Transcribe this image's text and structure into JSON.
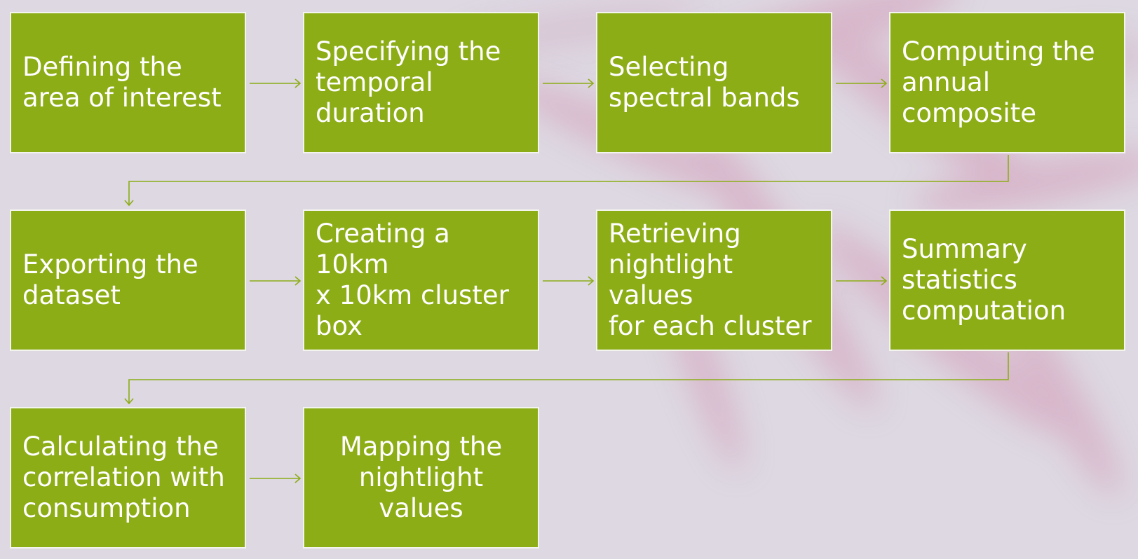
{
  "colors": {
    "background": "#ddd8e2",
    "box_fill": "#8cad16",
    "box_border": "#f3f4ee",
    "box_text": "#ffffff",
    "connector": "#8cad16",
    "decoration": "#d49bb8"
  },
  "steps": [
    {
      "label": " Defining the\narea of interest"
    },
    {
      "label": "Specifying the\ntemporal\nduration"
    },
    {
      "label": "Selecting\nspectral bands"
    },
    {
      "label": "Computing the\nannual\ncomposite"
    },
    {
      "label": "Exporting the\ndataset"
    },
    {
      "label": "Creating a 10km\nx 10km cluster\nbox"
    },
    {
      "label": "Retrieving\nnightlight values\nfor each cluster"
    },
    {
      "label": "Summary\nstatistics\ncomputation"
    },
    {
      "label": "Calculating the\ncorrelation with\nconsumption"
    },
    {
      "label": "Mapping the\nnightlight values"
    }
  ]
}
